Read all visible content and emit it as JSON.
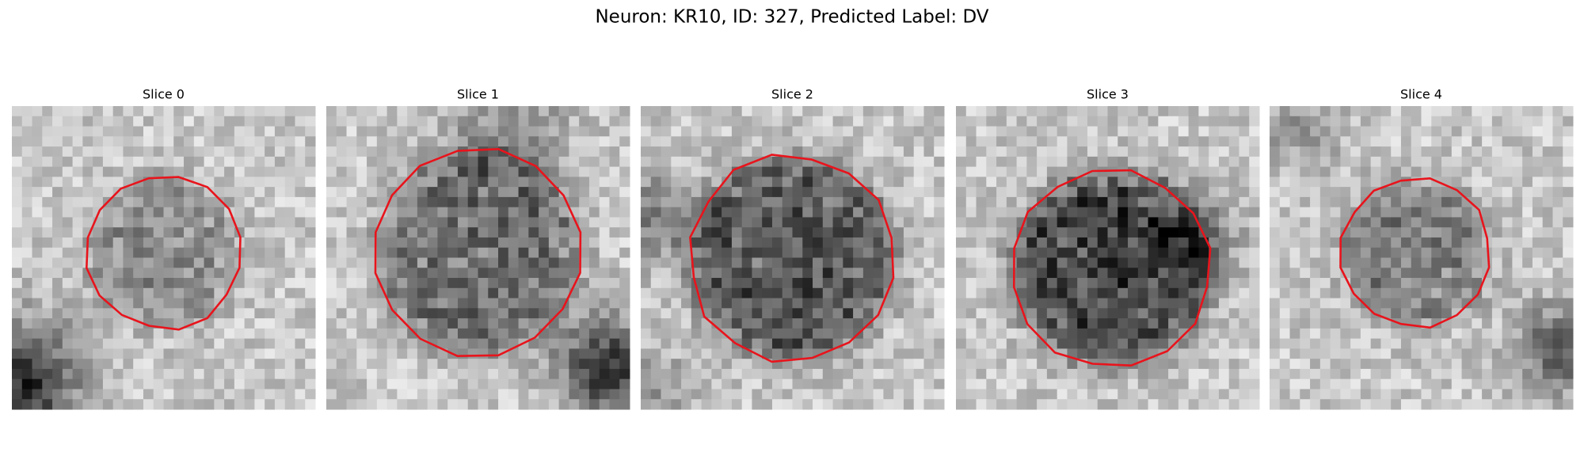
{
  "title": "Neuron: KR10, ID: 327, Predicted Label: DV",
  "panels": [
    {
      "title": "Slice 0"
    },
    {
      "title": "Slice 1"
    },
    {
      "title": "Slice 2"
    },
    {
      "title": "Slice 3"
    },
    {
      "title": "Slice 4"
    }
  ]
}
